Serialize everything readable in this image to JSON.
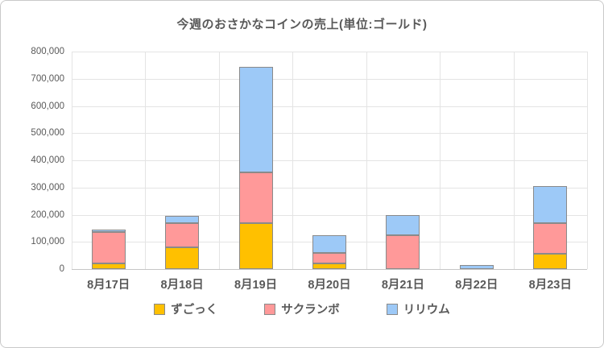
{
  "chart_data": {
    "type": "bar",
    "stacked": true,
    "title": "今週のおさかなコインの売上(単位:ゴールド)",
    "xlabel": "",
    "ylabel": "",
    "categories": [
      "8月17日",
      "8月18日",
      "8月19日",
      "8月20日",
      "8月21日",
      "8月22日",
      "8月23日"
    ],
    "series": [
      {
        "name": "ずごっく",
        "color": "#FFC000",
        "values": [
          20000,
          80000,
          170000,
          20000,
          0,
          0,
          55000
        ]
      },
      {
        "name": "サクランボ",
        "color": "#FF9999",
        "values": [
          115000,
          90000,
          185000,
          40000,
          125000,
          0,
          115000
        ]
      },
      {
        "name": "リリウム",
        "color": "#9DC9F7",
        "values": [
          10000,
          25000,
          390000,
          65000,
          75000,
          15000,
          135000
        ]
      }
    ],
    "totals": [
      145000,
      195000,
      745000,
      125000,
      200000,
      15000,
      305000
    ],
    "ylim": [
      0,
      800000
    ],
    "ytick_step": 100000,
    "ytick_labels": [
      "0",
      "100,000",
      "200,000",
      "300,000",
      "400,000",
      "500,000",
      "600,000",
      "700,000",
      "800,000"
    ],
    "grid": true,
    "legend_position": "bottom",
    "colors": {
      "text": "#595959",
      "gridline": "#e4e4e4",
      "axis_line": "#c6c6c6",
      "bar_border": "#8a8a8a",
      "background": "#ffffff"
    }
  }
}
